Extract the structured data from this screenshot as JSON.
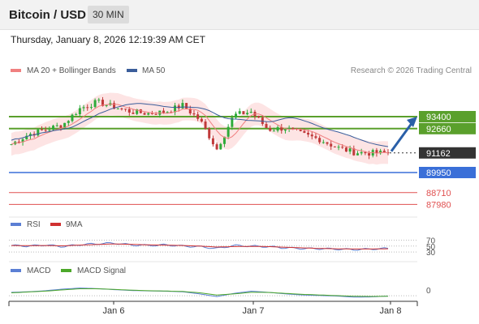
{
  "header": {
    "title": "Bitcoin / USD",
    "timeframe": "30 MIN"
  },
  "datetime": "Thursday, January 8, 2026 12:19:39 AM CET",
  "legend": {
    "ma20_label": "MA 20 + Bollinger Bands",
    "ma50_label": "MA 50",
    "research": "Research © 2026 Trading Central"
  },
  "colors": {
    "candle_up": "#2eab3a",
    "candle_down": "#c03a3a",
    "ma20": "#f08080",
    "band_fill": "#fde4e4",
    "ma50": "#3b5e9b",
    "resistance": "#5aa02c",
    "current": "#333333",
    "support_blue": "#3a6fd8",
    "support_red": "#e05050",
    "rsi": "#5b7fd4",
    "rsi_ma": "#d03030",
    "macd": "#5b7fd4",
    "macd_signal": "#4ca82a",
    "arrow": "#2a5fa8"
  },
  "chart_data": [
    {
      "type": "candlestick",
      "instrument": "Bitcoin / USD",
      "interval": "30 MIN",
      "x_ticks": [
        "Jan 6",
        "Jan 7",
        "Jan 8"
      ],
      "ylim": [
        87500,
        95600
      ],
      "levels": [
        {
          "value": 93400,
          "label": "93400",
          "kind": "resistance"
        },
        {
          "value": 92660,
          "label": "92660",
          "kind": "resistance"
        },
        {
          "value": 91162,
          "label": "91162",
          "kind": "current"
        },
        {
          "value": 89950,
          "label": "89950",
          "kind": "support"
        },
        {
          "value": 88710,
          "label": "88710",
          "kind": "support-minor"
        },
        {
          "value": 87980,
          "label": "87980",
          "kind": "support-minor"
        }
      ],
      "series": [
        {
          "name": "MA 20 + Bollinger Bands",
          "shape": [
            0.1,
            0.18,
            0.28,
            0.38,
            0.5,
            0.62,
            0.72,
            0.8,
            0.84,
            0.85,
            0.84,
            0.83,
            0.82,
            0.8,
            0.78,
            0.75,
            0.7,
            0.64,
            0.58,
            0.55,
            0.54,
            0.53,
            0.5,
            0.45,
            0.38,
            0.32,
            0.26,
            0.2,
            0.14,
            0.1
          ]
        },
        {
          "name": "MA 50",
          "shape": [
            0.0,
            0.06,
            0.14,
            0.24,
            0.36,
            0.48,
            0.6,
            0.7,
            0.77,
            0.82,
            0.85,
            0.87,
            0.88,
            0.88,
            0.87,
            0.86,
            0.84,
            0.81,
            0.77,
            0.73,
            0.7,
            0.67,
            0.63,
            0.58,
            0.52,
            0.46,
            0.4,
            0.35,
            0.3,
            0.26
          ]
        }
      ],
      "price_path": [
        91700,
        92300,
        92600,
        92900,
        93900,
        94300,
        94000,
        93700,
        93600,
        93700,
        94100,
        93200,
        91400,
        93500,
        93700,
        92600,
        92700,
        92300,
        92000,
        91500,
        91200,
        91150,
        91162
      ],
      "bollinger_halfwidth": 700,
      "forecast_target": 93400
    },
    {
      "type": "line",
      "title": "RSI",
      "series": [
        {
          "name": "RSI",
          "shape": [
            0.55,
            0.5,
            0.6,
            0.45,
            0.62,
            0.7,
            0.75,
            0.6,
            0.55,
            0.6,
            0.5,
            0.45,
            0.3,
            0.55,
            0.5,
            0.45,
            0.35,
            0.3,
            0.28,
            0.25,
            0.2,
            0.25,
            0.3
          ]
        },
        {
          "name": "9MA",
          "shape": [
            0.55,
            0.53,
            0.55,
            0.52,
            0.58,
            0.64,
            0.68,
            0.65,
            0.6,
            0.58,
            0.55,
            0.5,
            0.42,
            0.46,
            0.48,
            0.46,
            0.4,
            0.35,
            0.3,
            0.27,
            0.25,
            0.25,
            0.27
          ]
        }
      ],
      "levels": [
        70,
        50,
        30
      ]
    },
    {
      "type": "line",
      "title": "MACD",
      "series": [
        {
          "name": "MACD",
          "shape": [
            0.45,
            0.5,
            0.6,
            0.75,
            0.85,
            0.8,
            0.7,
            0.62,
            0.58,
            0.55,
            0.5,
            0.3,
            0.05,
            0.35,
            0.55,
            0.45,
            0.3,
            0.2,
            0.15,
            0.1,
            0.0,
            0.02,
            0.1
          ]
        },
        {
          "name": "MACD Signal",
          "shape": [
            0.4,
            0.48,
            0.56,
            0.68,
            0.78,
            0.78,
            0.72,
            0.65,
            0.6,
            0.57,
            0.53,
            0.4,
            0.2,
            0.3,
            0.45,
            0.44,
            0.35,
            0.26,
            0.2,
            0.14,
            0.08,
            0.06,
            0.08
          ]
        }
      ],
      "levels": [
        0
      ]
    }
  ]
}
